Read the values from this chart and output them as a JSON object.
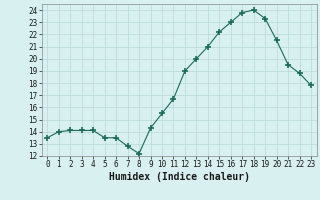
{
  "x": [
    0,
    1,
    2,
    3,
    4,
    5,
    6,
    7,
    8,
    9,
    10,
    11,
    12,
    13,
    14,
    15,
    16,
    17,
    18,
    19,
    20,
    21,
    22,
    23
  ],
  "y": [
    13.5,
    14.0,
    14.1,
    14.1,
    14.1,
    13.5,
    13.5,
    12.8,
    12.2,
    14.3,
    15.5,
    16.7,
    19.0,
    20.0,
    21.0,
    22.2,
    23.0,
    23.8,
    24.0,
    23.3,
    21.5,
    19.5,
    18.8,
    17.8
  ],
  "line_color": "#1a6b5a",
  "marker": "+",
  "bg_color": "#d8f0f0",
  "grid_color": "#b8d8d8",
  "xlabel": "Humidex (Indice chaleur)",
  "xlim": [
    -0.5,
    23.5
  ],
  "ylim": [
    12,
    24.5
  ],
  "yticks": [
    12,
    13,
    14,
    15,
    16,
    17,
    18,
    19,
    20,
    21,
    22,
    23,
    24
  ],
  "xticks": [
    0,
    1,
    2,
    3,
    4,
    5,
    6,
    7,
    8,
    9,
    10,
    11,
    12,
    13,
    14,
    15,
    16,
    17,
    18,
    19,
    20,
    21,
    22,
    23
  ]
}
